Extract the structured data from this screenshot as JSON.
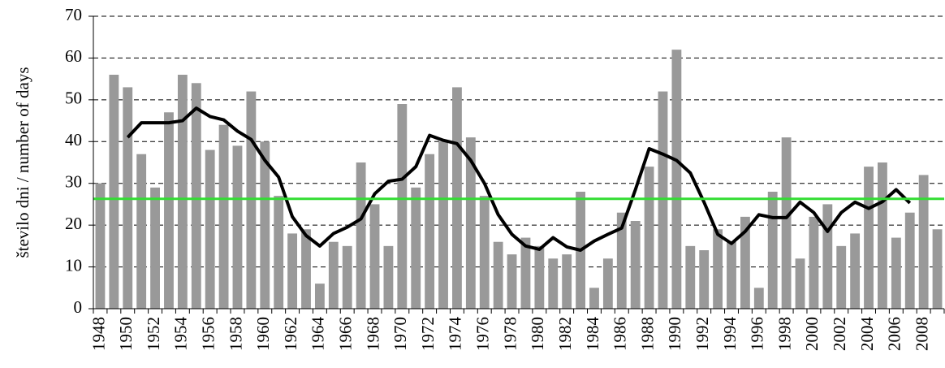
{
  "chart_data": {
    "type": "bar",
    "y_label": "število dni / number of days",
    "categories": [
      "1948",
      null,
      "1950",
      null,
      "1952",
      null,
      "1954",
      null,
      "1956",
      null,
      "1958",
      null,
      "1960",
      null,
      "1962",
      null,
      "1964",
      null,
      "1966",
      null,
      "1968",
      null,
      "1970",
      null,
      "1972",
      null,
      "1974",
      null,
      "1976",
      null,
      "1978",
      null,
      "1980",
      null,
      "1982",
      null,
      "1984",
      null,
      "1986",
      null,
      "1988",
      null,
      "1990",
      null,
      "1992",
      null,
      "1994",
      null,
      "1996",
      null,
      "1998",
      null,
      "2000",
      null,
      "2002",
      null,
      "2004",
      null,
      "2006",
      null,
      "2008",
      null
    ],
    "series": [
      {
        "type": "bar",
        "color": "#999999",
        "values": [
          30,
          56,
          53,
          37,
          29,
          47,
          56,
          54,
          38,
          44,
          39,
          52,
          40,
          27,
          18,
          19,
          6,
          16,
          15,
          35,
          25,
          15,
          49,
          29,
          37,
          40,
          53,
          41,
          27,
          16,
          13,
          17,
          15,
          12,
          13,
          28,
          5,
          12,
          23,
          21,
          34,
          52,
          62,
          15,
          14,
          19,
          16,
          22,
          5,
          28,
          41,
          12,
          22,
          25,
          15,
          18,
          34,
          35,
          17,
          23,
          32,
          19
        ]
      },
      {
        "type": "line",
        "color": "#000000",
        "values": [
          null,
          null,
          41,
          44.5,
          44.5,
          44.5,
          45,
          48,
          46,
          45.2,
          42.5,
          40.5,
          35.5,
          31.5,
          22,
          17.5,
          15,
          18,
          19.5,
          21.5,
          27.5,
          30.5,
          31,
          34,
          41.5,
          40.3,
          39.5,
          35.5,
          30,
          22.5,
          17.8,
          15,
          14.2,
          17,
          14.8,
          14,
          16.2,
          17.8,
          19.3,
          28.5,
          38.3,
          37,
          35.5,
          32.5,
          25.5,
          17.8,
          15.6,
          18.5,
          22.5,
          21.8,
          21.8,
          25.5,
          23,
          18.5,
          23,
          25.5,
          24,
          25.6,
          28.5,
          25.3,
          null,
          null
        ]
      }
    ],
    "reference_line": {
      "value": 26.3,
      "color": "#33dd33"
    },
    "ylim": [
      0,
      70
    ],
    "yticks": [
      0,
      10,
      20,
      30,
      40,
      50,
      60,
      70
    ],
    "grid": true
  }
}
